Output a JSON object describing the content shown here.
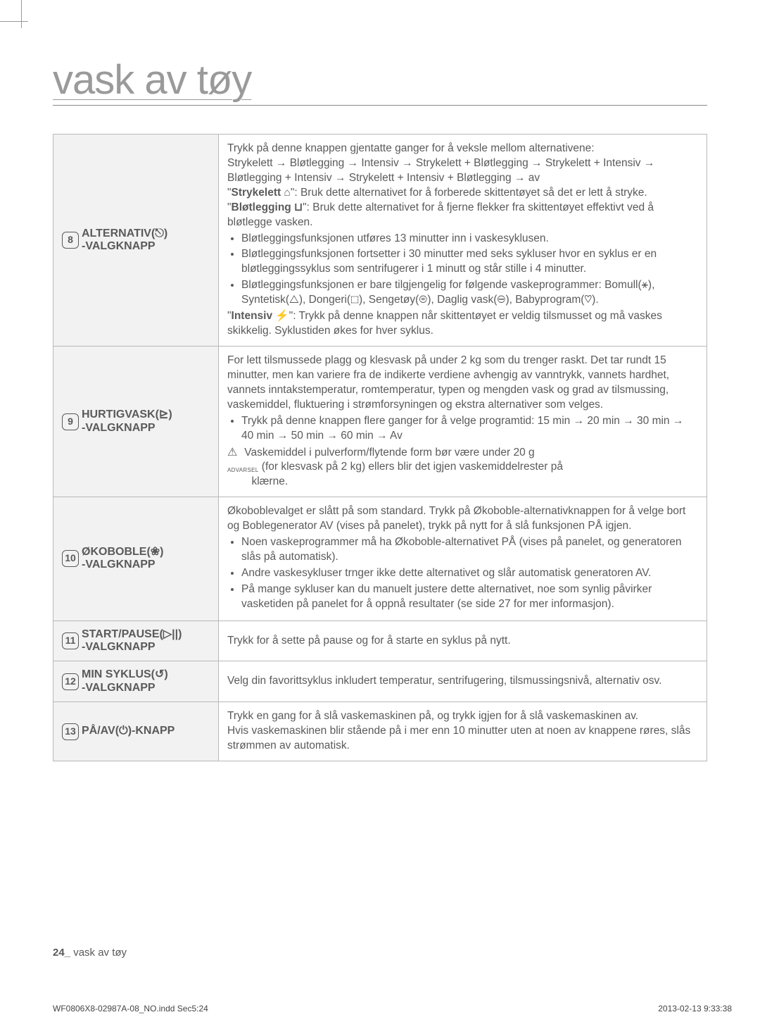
{
  "title": "vask av tøy",
  "rows": [
    {
      "num": "8",
      "label": "ALTERNATIV(⎋)\n-VALGKNAPP",
      "desc_html": "Trykk på denne knappen gjentatte ganger for å veksle mellom alternativene:<br>Strykelett → Bløtlegging → Intensiv → Strykelett + Bløtlegging → Strykelett + Intensiv → Bløtlegging + Intensiv → Strykelett + Intensiv + Bløtlegging → av<br>\"<b>Strykelett ⌂</b>\": Bruk dette alternativet for å forberede skittentøyet så det er lett å stryke.<br>\"<b>Bløtlegging ⊔</b>\": Bruk dette alternativet for å fjerne flekker fra skittentøyet effektivt ved å bløtlegge vasken.<ul><li>Bløtleggingsfunksjonen utføres 13 minutter inn i vaskesyklusen.</li><li>Bløtleggingsfunksjonen fortsetter i 30 minutter med seks sykluser hvor en syklus er en bløtleggingssyklus som sentrifugerer i 1 minutt og står stille i 4 minutter.</li><li>Bløtleggingsfunksjonen er bare tilgjengelig for følgende vaskeprogrammer: Bomull(⚹), Syntetisk(△), Dongeri(⬚), Sengetøy(⊜), Daglig vask(⊖), Babyprogram(♡).</li></ul>\"<b>Intensiv ⚡</b>\": Trykk på denne knappen når skittentøyet er veldig tilsmusset og må vaskes skikkelig. Syklustiden økes for hver syklus."
    },
    {
      "num": "9",
      "label": "HURTIGVASK(⊵)\n-VALGKNAPP",
      "desc_html": "For lett tilsmussede plagg og klesvask på under 2 kg som du trenger raskt. Det tar rundt 15 minutter, men kan variere fra de indikerte verdiene avhengig av vanntrykk, vannets hardhet, vannets inntakstemperatur, romtemperatur, typen og mengden vask og grad av tilsmussing, vaskemiddel, fluktuering i strømforsyningen og ekstra alternativer som velges.<ul><li>Trykk på denne knappen flere ganger for å velge programtid: 15 min → 20 min → 30 min → 40 min → 50 min → 60 min → Av</li></ul><span class='warn-icon'>⚠</span> Vaskemiddel i pulverform/flytende form bør være under 20 g <br><span class='advarsel'>ADVARSEL</span> (for klesvask på 2 kg) ellers blir det igjen vaskemiddelrester på<br>&nbsp;&nbsp;&nbsp;&nbsp;&nbsp;&nbsp;&nbsp;&nbsp;klærne."
    },
    {
      "num": "10",
      "label": "ØKOBOBLE(❀)\n-VALGKNAPP",
      "desc_html": "Økoboblevalget er slått på som standard. Trykk på Økoboble-alternativknappen for å velge bort og Boblegenerator AV (vises på panelet), trykk på nytt for å slå funksjonen PÅ igjen.<ul><li>Noen vaskeprogrammer må ha Økoboble-alternativet PÅ (vises på panelet, og generatoren slås på automatisk).</li><li>Andre vaskesykluser trnger ikke dette alternativet og slår automatisk generatoren AV.</li><li>På mange sykluser kan du manuelt justere dette alternativet, noe som synlig påvirker vasketiden på panelet for å oppnå resultater (se side 27 for mer informasjon).</li></ul>"
    },
    {
      "num": "11",
      "label": "START/PAUSE(▷||)\n-VALGKNAPP",
      "desc_html": "Trykk for å sette på pause og for å starte en syklus på nytt."
    },
    {
      "num": "12",
      "label": "MIN SYKLUS(↺)\n-VALGKNAPP",
      "desc_html": "Velg din favorittsyklus inkludert temperatur, sentrifugering, tilsmussingsnivå, alternativ osv."
    },
    {
      "num": "13",
      "label": "PÅ/AV(⏻)-KNAPP",
      "desc_html": "Trykk en gang for å slå vaskemaskinen på, og trykk igjen for å slå vaskemaskinen av.<br>Hvis vaskemaskinen blir stående på i mer enn 10 minutter uten at noen av knappene røres, slås strømmen av automatisk."
    }
  ],
  "footer": {
    "page_num": "24_",
    "page_label": " vask av tøy"
  },
  "print_left": "WF0806X8-02987A-08_NO.indd   Sec5:24",
  "print_right": "2013-02-13     9:33:38"
}
